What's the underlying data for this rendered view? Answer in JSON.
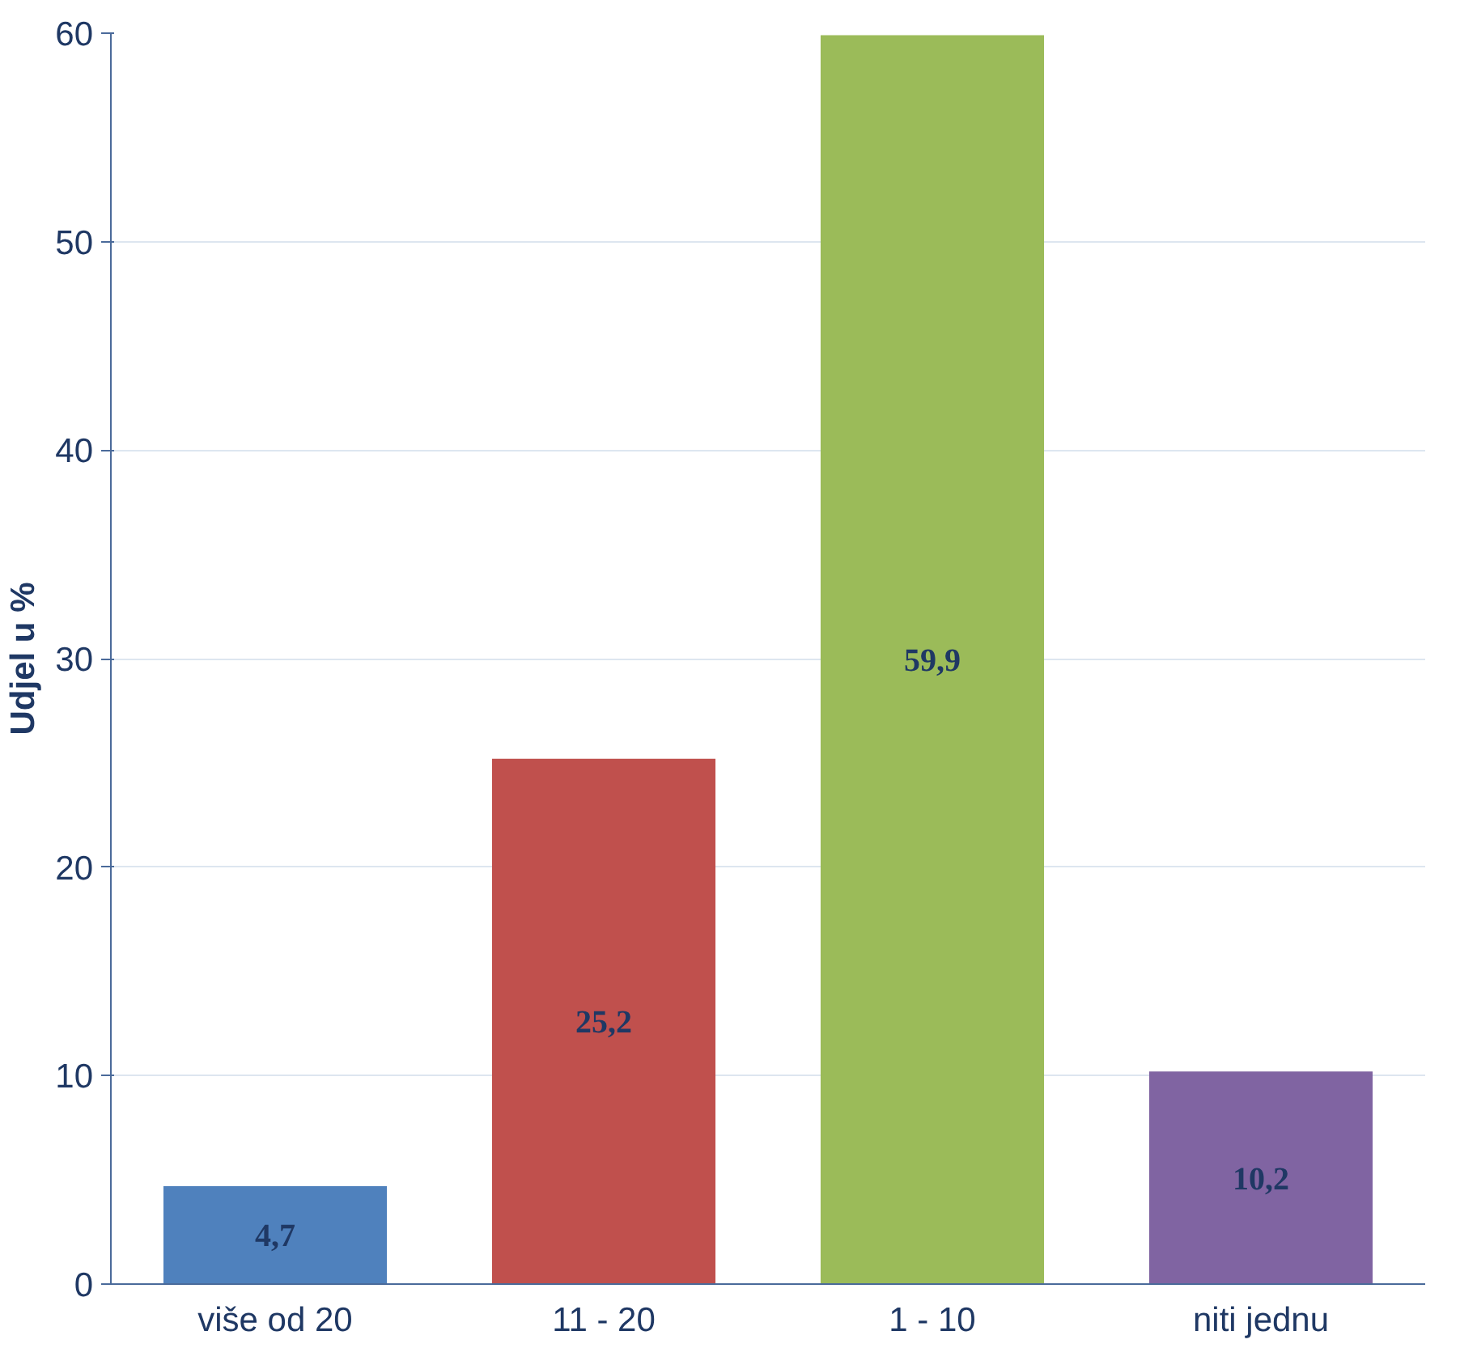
{
  "chart_data": {
    "type": "bar",
    "ylabel": "Udjel u %",
    "categories": [
      "više od 20",
      "11 - 20",
      "1 - 10",
      "niti jednu"
    ],
    "values": [
      4.7,
      25.2,
      59.9,
      10.2
    ],
    "colors": [
      "#4f81bd",
      "#c0504d",
      "#9bbb59",
      "#8064a2"
    ],
    "value_labels": [
      "4,7",
      "25,2",
      "59,9",
      "10,2"
    ],
    "ylim": [
      0,
      60
    ],
    "yticks": [
      0,
      10,
      20,
      30,
      40,
      50,
      60
    ],
    "grid": "y"
  }
}
